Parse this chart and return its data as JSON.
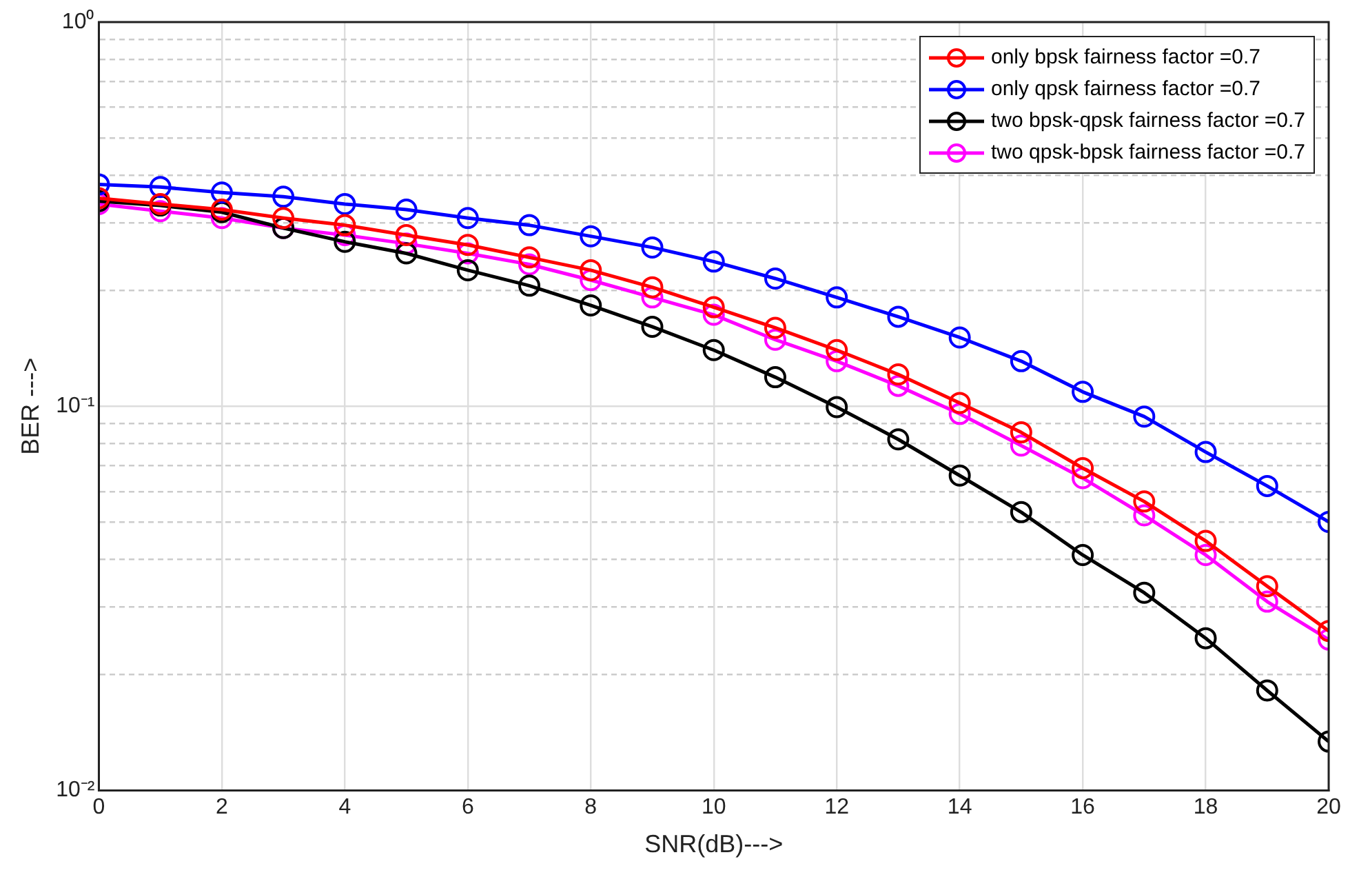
{
  "chart_data": {
    "type": "line",
    "xlabel": "SNR(dB)--->",
    "ylabel": "BER --->",
    "x": [
      0,
      1,
      2,
      3,
      4,
      5,
      6,
      7,
      8,
      9,
      10,
      11,
      12,
      13,
      14,
      15,
      16,
      17,
      18,
      19,
      20
    ],
    "series": [
      {
        "name": "only bpsk fairness factor =0.7",
        "color": "#ff0000",
        "values": [
          0.348,
          0.336,
          0.325,
          0.309,
          0.296,
          0.279,
          0.263,
          0.244,
          0.226,
          0.204,
          0.181,
          0.16,
          0.14,
          0.121,
          0.102,
          0.0855,
          0.069,
          0.0565,
          0.0446,
          0.034,
          0.026
        ]
      },
      {
        "name": "only qpsk fairness factor =0.7",
        "color": "#0000ff",
        "values": [
          0.378,
          0.372,
          0.36,
          0.351,
          0.336,
          0.325,
          0.309,
          0.296,
          0.277,
          0.259,
          0.238,
          0.215,
          0.192,
          0.171,
          0.151,
          0.131,
          0.109,
          0.094,
          0.076,
          0.062,
          0.05
        ]
      },
      {
        "name": "two bpsk-qpsk fairness factor =0.7",
        "color": "#000000",
        "values": [
          0.342,
          0.333,
          0.32,
          0.291,
          0.268,
          0.25,
          0.226,
          0.206,
          0.183,
          0.161,
          0.14,
          0.119,
          0.0995,
          0.082,
          0.066,
          0.053,
          0.041,
          0.0327,
          0.0249,
          0.0182,
          0.0134
        ]
      },
      {
        "name": "two qpsk-bpsk fairness factor =0.7",
        "color": "#ff00ff",
        "values": [
          0.336,
          0.322,
          0.309,
          0.291,
          0.279,
          0.265,
          0.25,
          0.234,
          0.213,
          0.192,
          0.173,
          0.149,
          0.131,
          0.113,
          0.0955,
          0.079,
          0.065,
          0.052,
          0.041,
          0.031,
          0.0247
        ]
      }
    ],
    "xlim": [
      0,
      20
    ],
    "xticks": [
      0,
      2,
      4,
      6,
      8,
      10,
      12,
      14,
      16,
      18,
      20
    ],
    "ylim": [
      0.01,
      1
    ],
    "yticks": [
      {
        "value": 0.01,
        "label": "10⁻²"
      },
      {
        "value": 0.02,
        "label": null
      },
      {
        "value": 0.03,
        "label": null
      },
      {
        "value": 0.04,
        "label": null
      },
      {
        "value": 0.05,
        "label": null
      },
      {
        "value": 0.06,
        "label": null
      },
      {
        "value": 0.07,
        "label": null
      },
      {
        "value": 0.08,
        "label": null
      },
      {
        "value": 0.09,
        "label": null
      },
      {
        "value": 0.1,
        "label": "10⁻¹"
      },
      {
        "value": 0.2,
        "label": null
      },
      {
        "value": 0.3,
        "label": null
      },
      {
        "value": 0.4,
        "label": null
      },
      {
        "value": 0.5,
        "label": null
      },
      {
        "value": 0.6,
        "label": null
      },
      {
        "value": 0.7,
        "label": null
      },
      {
        "value": 0.8,
        "label": null
      },
      {
        "value": 0.9,
        "label": null
      },
      {
        "value": 1,
        "label": "10⁰"
      }
    ],
    "log": "y",
    "grid": true,
    "legend": "top right",
    "marker": "circle",
    "line_style": "solid"
  }
}
